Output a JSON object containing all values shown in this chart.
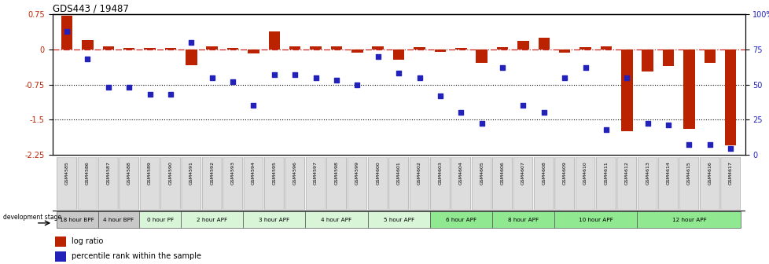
{
  "title": "GDS443 / 19487",
  "samples": [
    "GSM4585",
    "GSM4586",
    "GSM4587",
    "GSM4588",
    "GSM4589",
    "GSM4590",
    "GSM4591",
    "GSM4592",
    "GSM4593",
    "GSM4594",
    "GSM4595",
    "GSM4596",
    "GSM4597",
    "GSM4598",
    "GSM4599",
    "GSM4600",
    "GSM4601",
    "GSM4602",
    "GSM4603",
    "GSM4604",
    "GSM4605",
    "GSM4606",
    "GSM4607",
    "GSM4608",
    "GSM4609",
    "GSM4610",
    "GSM4611",
    "GSM4612",
    "GSM4613",
    "GSM4614",
    "GSM4615",
    "GSM4616",
    "GSM4617"
  ],
  "log_ratio": [
    0.72,
    0.2,
    0.07,
    0.04,
    0.04,
    0.03,
    -0.33,
    0.07,
    0.03,
    -0.08,
    0.38,
    0.06,
    0.06,
    0.07,
    -0.06,
    0.07,
    -0.22,
    0.05,
    -0.05,
    0.03,
    -0.28,
    0.05,
    0.18,
    0.25,
    -0.07,
    0.05,
    0.06,
    -1.75,
    -0.48,
    -0.35,
    -1.7,
    -0.28,
    -2.05
  ],
  "percentile": [
    88,
    68,
    48,
    48,
    43,
    43,
    80,
    55,
    52,
    35,
    57,
    57,
    55,
    53,
    50,
    70,
    58,
    55,
    42,
    30,
    22,
    62,
    35,
    30,
    55,
    62,
    18,
    55,
    22,
    21,
    7,
    7,
    4
  ],
  "stage_groups": [
    {
      "label": "18 hour BPF",
      "start": 0,
      "end": 2,
      "color": "#c8c8c8"
    },
    {
      "label": "4 hour BPF",
      "start": 2,
      "end": 4,
      "color": "#c8c8c8"
    },
    {
      "label": "0 hour PF",
      "start": 4,
      "end": 6,
      "color": "#d8f5d8"
    },
    {
      "label": "2 hour APF",
      "start": 6,
      "end": 9,
      "color": "#d8f5d8"
    },
    {
      "label": "3 hour APF",
      "start": 9,
      "end": 12,
      "color": "#d8f5d8"
    },
    {
      "label": "4 hour APF",
      "start": 12,
      "end": 15,
      "color": "#d8f5d8"
    },
    {
      "label": "5 hour APF",
      "start": 15,
      "end": 18,
      "color": "#d8f5d8"
    },
    {
      "label": "6 hour APF",
      "start": 18,
      "end": 21,
      "color": "#90e890"
    },
    {
      "label": "8 hour APF",
      "start": 21,
      "end": 24,
      "color": "#90e890"
    },
    {
      "label": "10 hour APF",
      "start": 24,
      "end": 28,
      "color": "#90e890"
    },
    {
      "label": "12 hour APF",
      "start": 28,
      "end": 33,
      "color": "#90e890"
    }
  ],
  "ylim_left": [
    -2.25,
    0.75
  ],
  "yticks_left": [
    0.75,
    0.0,
    -0.75,
    -1.5,
    -2.25
  ],
  "yticks_right_vals": [
    100,
    75,
    50,
    25,
    0
  ],
  "bar_color": "#bb2200",
  "scatter_color": "#2222bb",
  "dashed_line_color": "#cc2222",
  "dotted_line_y": [
    -0.75,
    -1.5
  ],
  "bar_width": 0.55,
  "legend_log_ratio": "log ratio",
  "legend_percentile": "percentile rank within the sample",
  "background_color": "#ffffff",
  "dev_stage_label": "development stage"
}
